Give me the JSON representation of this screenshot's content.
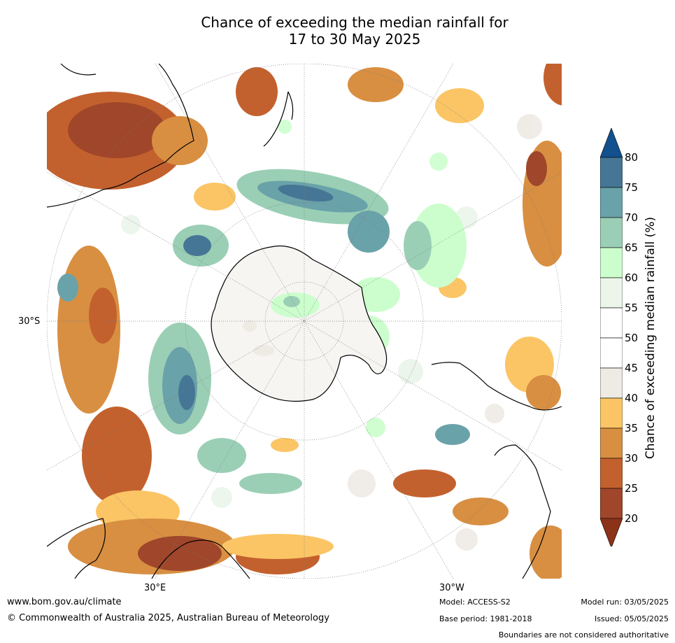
{
  "title_line1": "Chance of exceeding the median rainfall for",
  "title_line2": "17 to 30 May 2025",
  "map": {
    "projection": "south polar stereographic",
    "lat_label": "30°S",
    "lon_label_left": "30°E",
    "lon_label_right": "30°W"
  },
  "colorbar": {
    "title": "Chance of exceeding median rainfall (%)",
    "ticks": [
      "20",
      "25",
      "30",
      "35",
      "40",
      "45",
      "50",
      "55",
      "60",
      "65",
      "70",
      "75",
      "80"
    ],
    "colors": [
      "#a0462a",
      "#c3612e",
      "#d88f42",
      "#fbc565",
      "#eeeae4",
      "#ffffff",
      "#ffffff",
      "#ebf5ea",
      "#ccfecd",
      "#9bcfb5",
      "#6aa2a9",
      "#467695"
    ],
    "under_color": "#8b3218",
    "over_color": "#12508e"
  },
  "footer": {
    "website": "www.bom.gov.au/climate",
    "copyright": "© Commonwealth of Australia 2025, Australian Bureau of Meteorology",
    "model": "Model: ACCESS-S2",
    "base_period": "Base period: 1981-2018",
    "model_run": "Model run: 03/05/2025",
    "issued": "Issued: 05/05/2025",
    "boundaries": "Boundaries are not considered authoritative"
  }
}
